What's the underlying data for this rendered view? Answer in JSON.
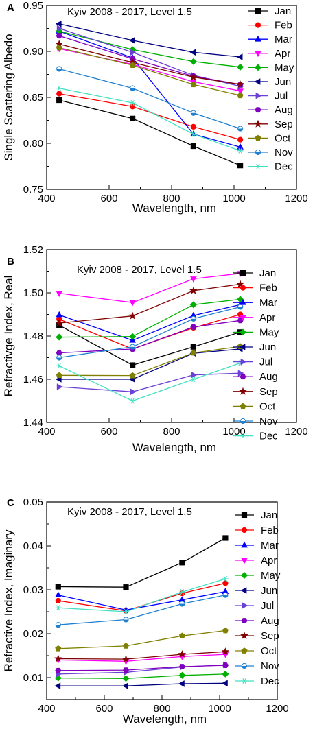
{
  "months": [
    "Jan",
    "Feb",
    "Mar",
    "Apr",
    "May",
    "Jun",
    "Jul",
    "Aug",
    "Sep",
    "Oct",
    "Nov",
    "Dec"
  ],
  "colors": [
    "#000000",
    "#ff0000",
    "#0000ff",
    "#ff00ff",
    "#00b000",
    "#000080",
    "#6b40d8",
    "#7f00bf",
    "#800000",
    "#808000",
    "#2080d0",
    "#40e0c0"
  ],
  "markers": [
    "square",
    "circle",
    "triangle-up",
    "triangle-down",
    "diamond",
    "triangle-left",
    "triangle-right",
    "hexagon",
    "star",
    "pentagon",
    "circle-half",
    "asterisk"
  ],
  "chart_data": [
    {
      "panel": "A",
      "type": "line",
      "title": "Kyiv 2008 - 2017, Level 1.5",
      "xlabel": "Wavelength, nm",
      "ylabel": "Single Scattering Albedo",
      "x": [
        440,
        675,
        870,
        1020
      ],
      "xlim": [
        400,
        1200
      ],
      "ylim": [
        0.75,
        0.95
      ],
      "xticks": [
        400,
        600,
        800,
        1000,
        1200
      ],
      "yticks": [
        0.75,
        0.8,
        0.85,
        0.9,
        0.95
      ],
      "yticklabels": [
        "0.75",
        "0.80",
        "0.85",
        "0.90",
        "0.95"
      ],
      "series": [
        {
          "name": "Jan",
          "values": [
            0.847,
            0.827,
            0.797,
            0.776
          ]
        },
        {
          "name": "Feb",
          "values": [
            0.854,
            0.84,
            0.818,
            0.804
          ]
        },
        {
          "name": "Mar",
          "values": [
            0.922,
            0.893,
            0.81,
            0.796
          ]
        },
        {
          "name": "Apr",
          "values": [
            0.903,
            0.886,
            0.867,
            0.857
          ]
        },
        {
          "name": "May",
          "values": [
            0.922,
            0.902,
            0.889,
            0.883
          ]
        },
        {
          "name": "Jun",
          "values": [
            0.93,
            0.912,
            0.899,
            0.894
          ]
        },
        {
          "name": "Jul",
          "values": [
            0.925,
            0.899,
            0.874,
            0.862
          ]
        },
        {
          "name": "Aug",
          "values": [
            0.917,
            0.892,
            0.873,
            0.864
          ]
        },
        {
          "name": "Sep",
          "values": [
            0.908,
            0.888,
            0.872,
            0.864
          ]
        },
        {
          "name": "Oct",
          "values": [
            0.904,
            0.885,
            0.864,
            0.852
          ]
        },
        {
          "name": "Nov",
          "values": [
            0.881,
            0.86,
            0.833,
            0.816
          ]
        },
        {
          "name": "Dec",
          "values": [
            0.86,
            0.844,
            0.81,
            0.792
          ]
        }
      ]
    },
    {
      "panel": "B",
      "type": "line",
      "title": "Kyiv 2008 - 2017, Level 1.5",
      "xlabel": "Wavelength, nm",
      "ylabel": "Refractivge Index, Real",
      "x": [
        440,
        675,
        870,
        1020
      ],
      "xlim": [
        400,
        1200
      ],
      "ylim": [
        1.44,
        1.52
      ],
      "xticks": [
        400,
        600,
        800,
        1000,
        1200
      ],
      "yticks": [
        1.44,
        1.46,
        1.48,
        1.5,
        1.52
      ],
      "yticklabels": [
        "1.44",
        "1.46",
        "1.48",
        "1.50",
        "1.52"
      ],
      "series": [
        {
          "name": "Jan",
          "values": [
            1.485,
            1.4665,
            1.475,
            1.4818
          ]
        },
        {
          "name": "Feb",
          "values": [
            1.4878,
            1.474,
            1.4838,
            1.49
          ]
        },
        {
          "name": "Mar",
          "values": [
            1.4898,
            1.478,
            1.4895,
            1.4945
          ]
        },
        {
          "name": "Apr",
          "values": [
            1.4998,
            1.4955,
            1.5065,
            1.509
          ]
        },
        {
          "name": "May",
          "values": [
            1.4795,
            1.4798,
            1.4945,
            1.497
          ]
        },
        {
          "name": "Jun",
          "values": [
            1.46,
            1.46,
            1.472,
            1.474
          ]
        },
        {
          "name": "Jul",
          "values": [
            1.4565,
            1.4542,
            1.462,
            1.4628
          ]
        },
        {
          "name": "Aug",
          "values": [
            1.4722,
            1.474,
            1.4842,
            1.4872
          ]
        },
        {
          "name": "Sep",
          "values": [
            1.486,
            1.4893,
            1.501,
            1.504
          ]
        },
        {
          "name": "Oct",
          "values": [
            1.4618,
            1.4617,
            1.4722,
            1.4752
          ]
        },
        {
          "name": "Nov",
          "values": [
            1.47,
            1.475,
            1.488,
            1.4935
          ]
        },
        {
          "name": "Dec",
          "values": [
            1.4662,
            1.45,
            1.46,
            1.4675
          ]
        }
      ]
    },
    {
      "panel": "C",
      "type": "line",
      "title": "Kyiv 2008 - 2017, Level 1.5",
      "xlabel": "Wavelength, nm",
      "ylabel": "Refractive Index, Imaginary",
      "x": [
        440,
        675,
        870,
        1020
      ],
      "xlim": [
        400,
        1200
      ],
      "ylim": [
        0.005,
        0.05
      ],
      "xticks": [
        400,
        600,
        800,
        1000,
        1200
      ],
      "yticks": [
        0.01,
        0.02,
        0.03,
        0.04,
        0.05
      ],
      "yticklabels": [
        "0.01",
        "0.02",
        "0.03",
        "0.04",
        "0.05"
      ],
      "series": [
        {
          "name": "Jan",
          "values": [
            0.0307,
            0.0306,
            0.0362,
            0.0418
          ]
        },
        {
          "name": "Feb",
          "values": [
            0.0275,
            0.0252,
            0.0292,
            0.0315
          ]
        },
        {
          "name": "Mar",
          "values": [
            0.0288,
            0.0254,
            0.0277,
            0.0296
          ]
        },
        {
          "name": "Apr",
          "values": [
            0.014,
            0.0137,
            0.0148,
            0.0153
          ]
        },
        {
          "name": "May",
          "values": [
            0.0099,
            0.0098,
            0.0105,
            0.0108
          ]
        },
        {
          "name": "Jun",
          "values": [
            0.0081,
            0.0081,
            0.0086,
            0.0087
          ]
        },
        {
          "name": "Jul",
          "values": [
            0.0108,
            0.0112,
            0.0124,
            0.0129
          ]
        },
        {
          "name": "Aug",
          "values": [
            0.0116,
            0.0117,
            0.0125,
            0.0128
          ]
        },
        {
          "name": "Sep",
          "values": [
            0.0143,
            0.0142,
            0.0153,
            0.0159
          ]
        },
        {
          "name": "Oct",
          "values": [
            0.0166,
            0.0172,
            0.0195,
            0.0207
          ]
        },
        {
          "name": "Nov",
          "values": [
            0.022,
            0.0232,
            0.0268,
            0.0288
          ]
        },
        {
          "name": "Dec",
          "values": [
            0.0259,
            0.025,
            0.0295,
            0.0325
          ]
        }
      ]
    }
  ]
}
